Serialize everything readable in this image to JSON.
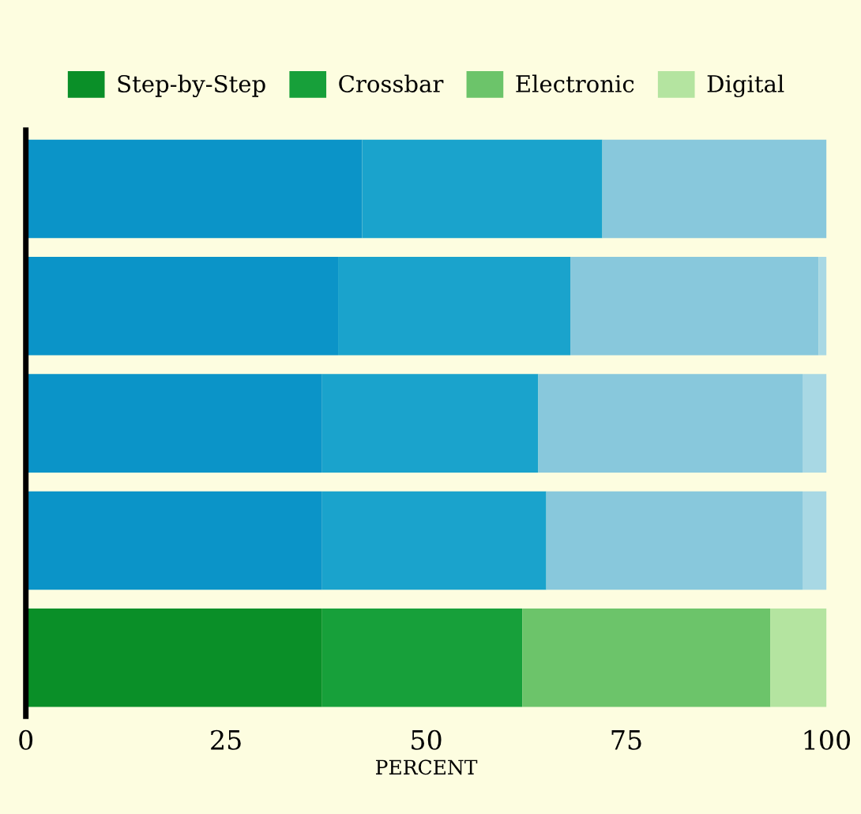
{
  "chart_data": {
    "type": "bar",
    "orientation": "horizontal",
    "stacked": true,
    "xlabel": "PERCENT",
    "categories": [
      null,
      null,
      null,
      null,
      null
    ],
    "series": [
      {
        "name": "Step-by-Step",
        "color": "#0a8f28",
        "colors": [
          "#0b94c8",
          "#0b94c8",
          "#0b94c8",
          "#0b94c8",
          "#0a8f28"
        ],
        "values": [
          42,
          39,
          37,
          37,
          37
        ]
      },
      {
        "name": "Crossbar",
        "color": "#17a03a",
        "colors": [
          "#1aa3cc",
          "#1aa3cc",
          "#1aa3cc",
          "#1aa3cc",
          "#17a03a"
        ],
        "values": [
          30,
          29,
          27,
          28,
          25
        ]
      },
      {
        "name": "Electronic",
        "color": "#6cc46a",
        "colors": [
          "#88c8dc",
          "#88c8dc",
          "#88c8dc",
          "#88c8dc",
          "#6cc46a"
        ],
        "values": [
          28,
          31,
          33,
          32,
          31
        ]
      },
      {
        "name": "Digital",
        "color": "#b4e4a0",
        "colors": [
          "#a8d8e4",
          "#a8d8e4",
          "#a8d8e4",
          "#a8d8e4",
          "#b4e4a0"
        ],
        "values": [
          0,
          1,
          3,
          3,
          7
        ]
      }
    ],
    "xlim": [
      0,
      100
    ],
    "xticks": [
      0,
      25,
      50,
      75,
      100
    ],
    "grid": false,
    "legend": "top"
  }
}
